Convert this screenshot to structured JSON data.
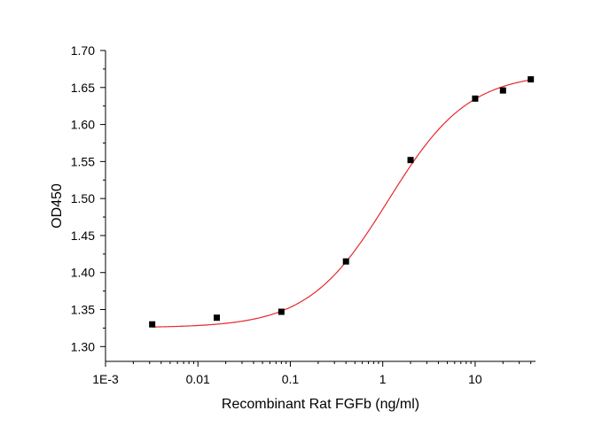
{
  "chart_data": {
    "type": "scatter",
    "title": "",
    "xlabel": "Recombinant Rat FGFb (ng/ml)",
    "ylabel": "OD450",
    "x_scale": "log",
    "xlim": [
      0.001,
      45
    ],
    "ylim": [
      1.28,
      1.7
    ],
    "x_ticks": [
      {
        "value": 0.001,
        "label": "1E-3"
      },
      {
        "value": 0.01,
        "label": "0.01"
      },
      {
        "value": 0.1,
        "label": "0.1"
      },
      {
        "value": 1,
        "label": "1"
      },
      {
        "value": 10,
        "label": "10"
      }
    ],
    "y_ticks": [
      {
        "value": 1.3,
        "label": "1.30"
      },
      {
        "value": 1.35,
        "label": "1.35"
      },
      {
        "value": 1.4,
        "label": "1.40"
      },
      {
        "value": 1.45,
        "label": "1.45"
      },
      {
        "value": 1.5,
        "label": "1.50"
      },
      {
        "value": 1.55,
        "label": "1.55"
      },
      {
        "value": 1.6,
        "label": "1.60"
      },
      {
        "value": 1.65,
        "label": "1.65"
      },
      {
        "value": 1.7,
        "label": "1.70"
      }
    ],
    "series": [
      {
        "x": [
          0.0032,
          0.016,
          0.08,
          0.4,
          2,
          10,
          20,
          40
        ],
        "y": [
          1.33,
          1.339,
          1.347,
          1.415,
          1.552,
          1.635,
          1.646,
          1.661
        ],
        "marker": "square",
        "color": "#000000"
      }
    ],
    "fit_curve": {
      "model": "four-parameter logistic",
      "bottom": 1.3255,
      "top": 1.67,
      "ec50": 1.15,
      "hill": 1.0,
      "x_range": [
        0.0032,
        40
      ],
      "color": "#e8282c"
    },
    "grid": false,
    "legend": "none"
  }
}
